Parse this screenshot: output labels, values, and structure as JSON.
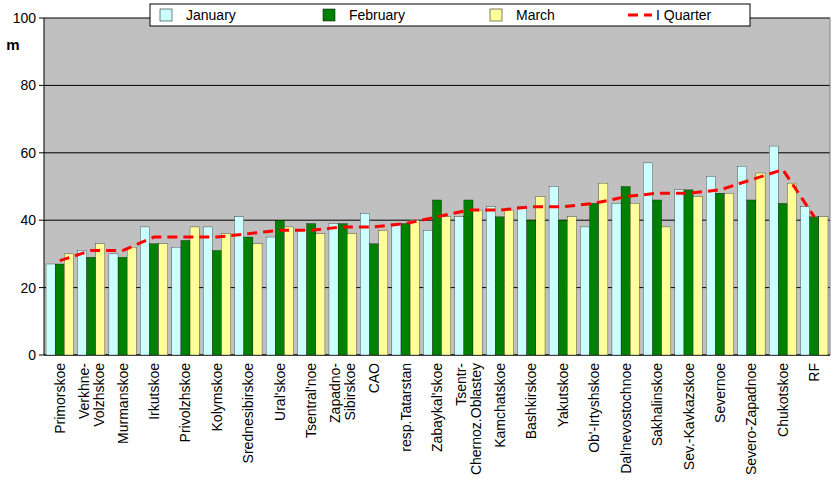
{
  "chart_data": {
    "type": "bar",
    "y_label": "m",
    "categories": [
      "Primorskoe",
      "Verkhne-\nVolzhskoe",
      "Murmanskoe",
      "Irkutskoe",
      "Privolzhskoe",
      "Kolymskoe",
      "Srednesibirskoe",
      "Ural'skoe",
      "Tsentral'noe",
      "Zapadno-\nSibirskoe",
      "CAO",
      "resp.Tatarstan",
      "Zabaykal'skoe",
      "Tsentr-\nChernoz.Oblastey",
      "Kamchatskoe",
      "Bashkirskoe",
      "Yakutskoe",
      "Ob'-Irtyshskoe",
      "Dal'nevostochnoe",
      "Sakhalinskoe",
      "Sev.-Kavkazskoe",
      "Severnoe",
      "Severo-Zapadnoe",
      "Chukotskoe",
      "RF"
    ],
    "series": [
      {
        "name": "January",
        "color": "#ccffff",
        "values": [
          27,
          31,
          30,
          38,
          32,
          38,
          41,
          35,
          37,
          39,
          42,
          39,
          37,
          41,
          44,
          44,
          50,
          38,
          45,
          57,
          49,
          53,
          56,
          62,
          44
        ]
      },
      {
        "name": "February",
        "color": "#008000",
        "values": [
          27,
          29,
          29,
          33,
          34,
          31,
          35,
          40,
          39,
          39,
          33,
          39,
          46,
          46,
          41,
          40,
          40,
          45,
          50,
          46,
          49,
          48,
          46,
          45,
          41
        ]
      },
      {
        "name": "March",
        "color": "#ffff99",
        "values": [
          30,
          33,
          32,
          33,
          38,
          36,
          33,
          38,
          36,
          36,
          37,
          40,
          41,
          43,
          43,
          47,
          41,
          51,
          45,
          38,
          47,
          48,
          54,
          51,
          41
        ]
      },
      {
        "name": "I Quarter",
        "type": "line",
        "color": "#ff0000",
        "line_style": "dashed",
        "values": [
          28,
          31,
          31,
          35,
          35,
          35,
          36,
          37,
          37,
          38,
          38,
          39,
          41,
          43,
          43,
          44,
          44,
          45,
          47,
          48,
          48,
          49,
          52,
          55,
          41
        ]
      }
    ],
    "ylim": [
      0,
      100
    ],
    "yticks": [
      0,
      20,
      40,
      60,
      80,
      100
    ],
    "grid": true,
    "legend": "top"
  }
}
